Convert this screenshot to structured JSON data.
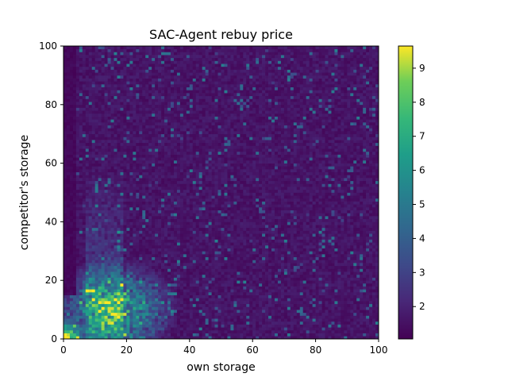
{
  "chart_data": {
    "type": "heatmap",
    "title": "SAC-Agent rebuy price",
    "xlabel": "own storage",
    "ylabel": "competitor's storage",
    "xlim": [
      0,
      100
    ],
    "ylim": [
      0,
      100
    ],
    "grid": false,
    "x_ticks": [
      0,
      20,
      40,
      60,
      80,
      100
    ],
    "y_ticks": [
      0,
      20,
      40,
      60,
      80,
      100
    ],
    "bins_per_axis": 100,
    "colormap": "viridis",
    "colorbar": {
      "min": 1.05,
      "max": 9.65,
      "ticks": [
        2,
        3,
        4,
        5,
        6,
        7,
        8,
        9
      ]
    },
    "regions": [
      {
        "description_level": "background",
        "own_storage": [
          0,
          100
        ],
        "competitor_storage": [
          0,
          100
        ],
        "typical_value": 1.6
      },
      {
        "description_level": "high",
        "own_storage": [
          0,
          6
        ],
        "competitor_storage": [
          0,
          6
        ],
        "typical_value": 9.0
      },
      {
        "description_level": "elevated",
        "own_storage": [
          5,
          35
        ],
        "competitor_storage": [
          0,
          30
        ],
        "typical_value": 4.5
      },
      {
        "description_level": "elevated",
        "own_storage": [
          8,
          18
        ],
        "competitor_storage": [
          30,
          58
        ],
        "typical_value": 3.2
      }
    ]
  },
  "colors": {
    "viridis_low": "#440154",
    "viridis_mid": "#21918c",
    "viridis_high": "#fde725"
  }
}
